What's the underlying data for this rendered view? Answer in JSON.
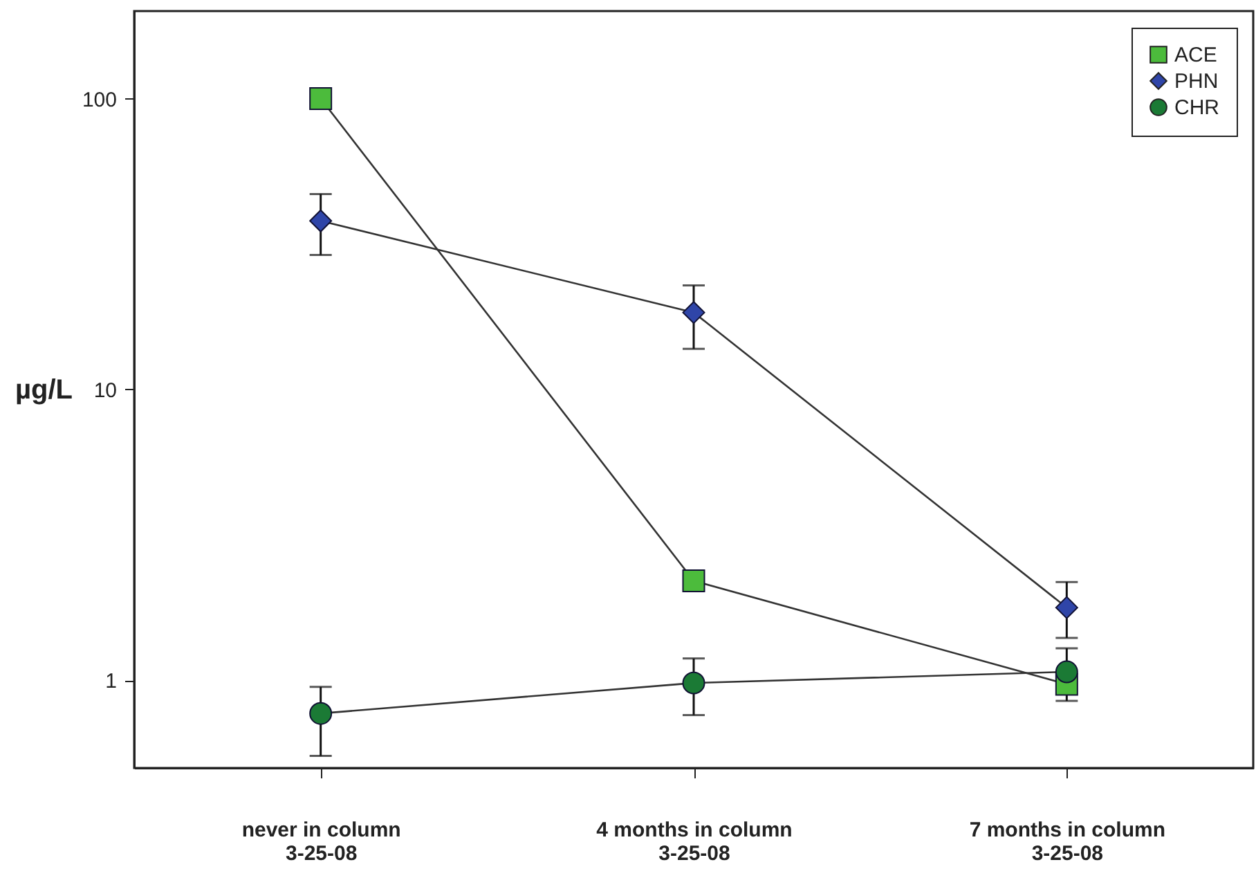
{
  "chart_data": {
    "type": "line",
    "ylabel": "µg/L",
    "categories": [
      "never in column\n3-25-08",
      "4 months in column\n3-25-08",
      "7 months in column\n3-25-08"
    ],
    "series": [
      {
        "name": "ACE",
        "color": "#4cbb3c",
        "marker": "square",
        "values": [
          100,
          2.2,
          0.97
        ]
      },
      {
        "name": "PHN",
        "color": "#2f45a8",
        "marker": "diamond",
        "values": [
          38,
          18.4,
          1.78
        ],
        "errors": [
          [
            29,
            47
          ],
          [
            13.8,
            22.8
          ],
          [
            1.4,
            2.18
          ]
        ]
      },
      {
        "name": "CHR",
        "color": "#1b7a35",
        "marker": "circle",
        "values": [
          0.77,
          0.98,
          1.07
        ],
        "errors": [
          [
            0.55,
            0.95
          ],
          [
            0.76,
            1.19
          ],
          [
            0.85,
            1.29
          ]
        ]
      }
    ],
    "log": true,
    "ylim": [
      0.5,
      200
    ],
    "yticks": [
      1,
      10,
      100
    ],
    "grid": false,
    "legend": "top right"
  }
}
